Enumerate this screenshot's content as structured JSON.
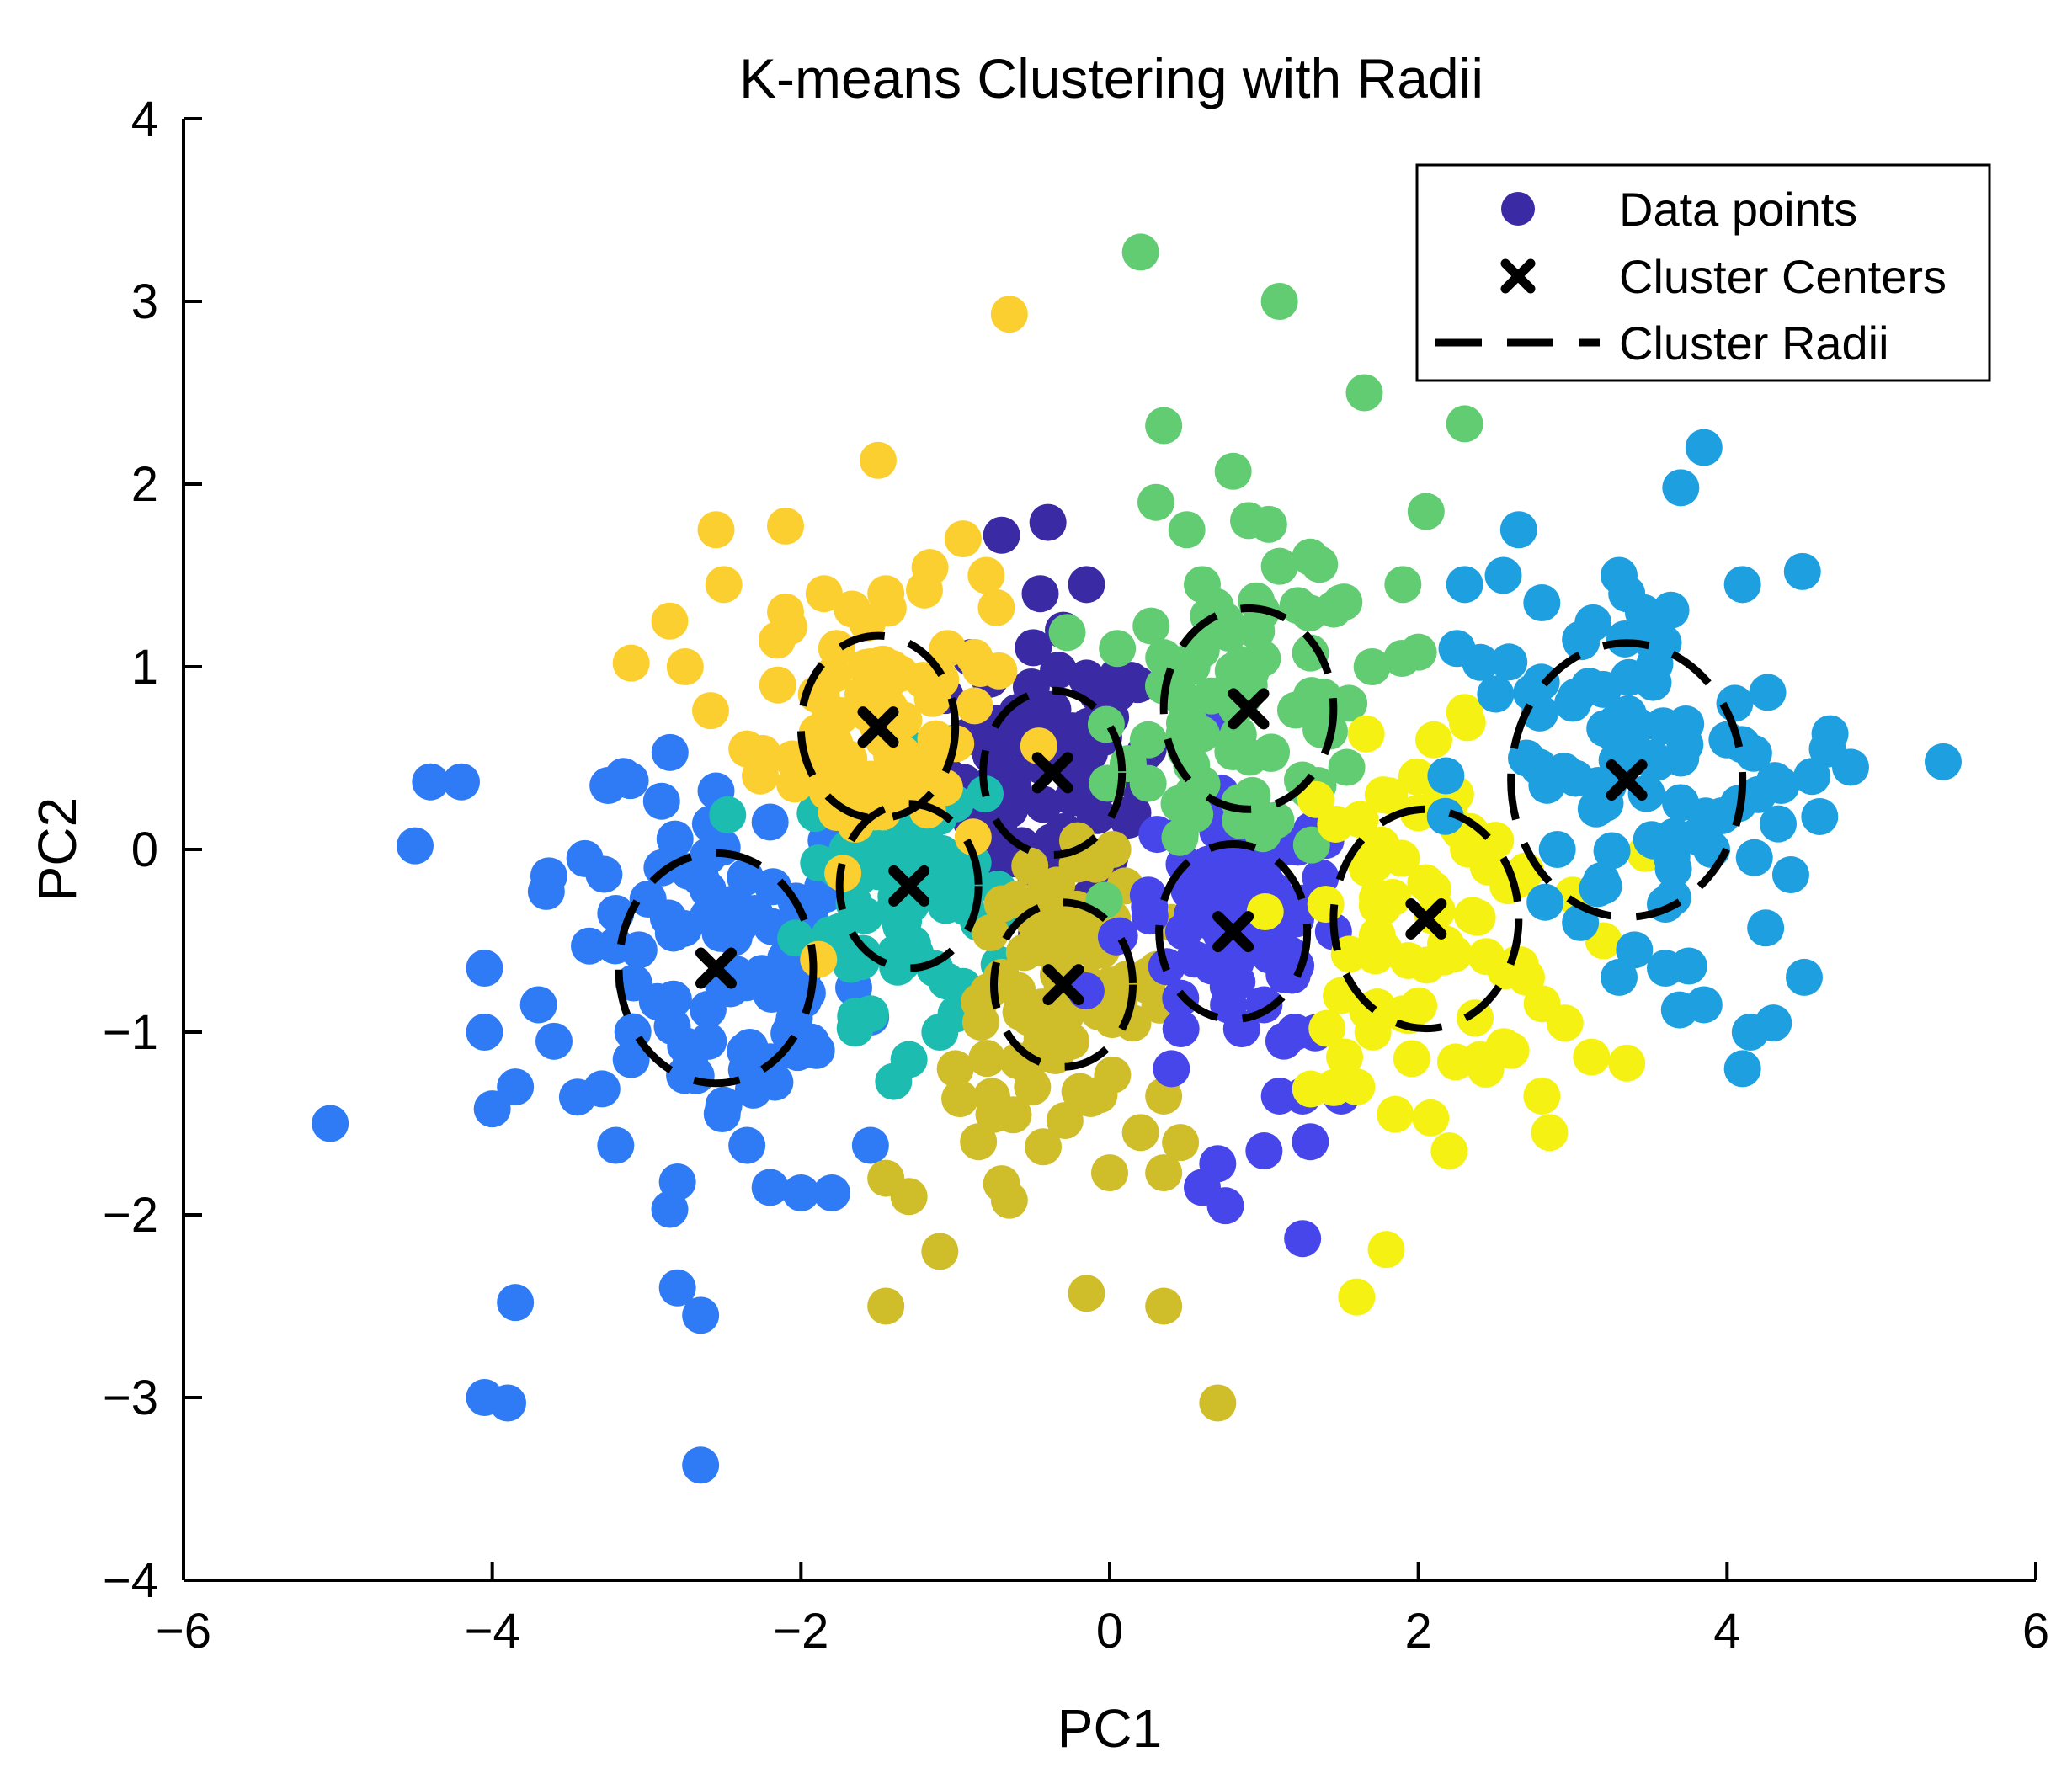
{
  "chart_data": {
    "type": "scatter",
    "title": "K-means Clustering with Radii",
    "xlabel": "PC1",
    "ylabel": "PC2",
    "xlim": [
      -6,
      6
    ],
    "ylim": [
      -4,
      4
    ],
    "xticks": [
      -6,
      -4,
      -2,
      0,
      2,
      4,
      6
    ],
    "xtick_labels": [
      "−6",
      "−4",
      "−2",
      "0",
      "2",
      "4",
      "6"
    ],
    "yticks": [
      -4,
      -3,
      -2,
      -1,
      0,
      1,
      2,
      3,
      4
    ],
    "ytick_labels": [
      "−4",
      "−3",
      "−2",
      "−1",
      "0",
      "1",
      "2",
      "3",
      "4"
    ],
    "grid": false,
    "legend": {
      "position": "top-right",
      "entries": [
        "Data points",
        "Cluster Centers",
        "Cluster Radii"
      ]
    },
    "clusters": [
      {
        "color": "#3a2aa4",
        "center": [
          -0.37,
          0.42
        ],
        "radius": 0.45,
        "points": [
          [
            -0.7,
            1.72
          ],
          [
            -0.4,
            1.79
          ],
          [
            -0.45,
            1.4
          ],
          [
            -0.15,
            1.45
          ],
          [
            -0.9,
            1.05
          ],
          [
            -0.3,
            1.2
          ],
          [
            -0.6,
            0.75
          ],
          [
            0.05,
            0.95
          ],
          [
            -0.2,
            0.3
          ],
          [
            -0.75,
            0.2
          ],
          [
            0.25,
            0.55
          ],
          [
            -0.5,
            -0.05
          ],
          [
            0.0,
            -0.05
          ],
          [
            0.15,
            0.2
          ],
          [
            -0.35,
            0.65
          ]
        ]
      },
      {
        "color": "#2f7bf6",
        "center": [
          -2.55,
          -0.65
        ],
        "radius": 0.63,
        "points": [
          [
            -5.05,
            -1.5
          ],
          [
            -4.5,
            0.02
          ],
          [
            -4.4,
            0.37
          ],
          [
            -4.2,
            0.37
          ],
          [
            -4.05,
            -0.65
          ],
          [
            -4.05,
            -1.0
          ],
          [
            -4.0,
            -1.42
          ],
          [
            -3.85,
            -1.3
          ],
          [
            -3.85,
            -2.48
          ],
          [
            -4.05,
            -3.0
          ],
          [
            -3.9,
            -3.03
          ],
          [
            -3.7,
            -0.85
          ],
          [
            -3.6,
            -1.05
          ],
          [
            -3.65,
            -0.23
          ],
          [
            -3.4,
            -0.05
          ],
          [
            -3.25,
            0.35
          ],
          [
            -3.15,
            0.4
          ],
          [
            -3.2,
            -0.35
          ],
          [
            -3.05,
            -0.55
          ],
          [
            -3.1,
            -1.15
          ],
          [
            -3.2,
            -1.62
          ],
          [
            -2.85,
            -1.97
          ],
          [
            -2.8,
            -1.82
          ],
          [
            -2.8,
            -2.4
          ],
          [
            -2.65,
            -2.55
          ],
          [
            -2.65,
            -3.37
          ],
          [
            -2.5,
            -1.4
          ],
          [
            -2.35,
            -1.62
          ],
          [
            -2.2,
            -1.85
          ],
          [
            -2.0,
            -1.88
          ],
          [
            -1.8,
            -1.88
          ],
          [
            -1.55,
            -1.62
          ],
          [
            -2.55,
            0.32
          ],
          [
            -2.2,
            0.15
          ],
          [
            -2.6,
            -1.05
          ],
          [
            -2.9,
            -0.1
          ],
          [
            -1.9,
            -1.1
          ],
          [
            -2.3,
            -0.35
          ],
          [
            -2.1,
            -0.75
          ]
        ]
      },
      {
        "color": "#1cbdb0",
        "center": [
          -1.3,
          -0.2
        ],
        "radius": 0.45,
        "points": [
          [
            -1.7,
            0.0
          ],
          [
            -1.5,
            0.3
          ],
          [
            -1.0,
            0.25
          ],
          [
            -0.85,
            -0.4
          ],
          [
            -1.75,
            -0.45
          ],
          [
            -1.55,
            -0.9
          ],
          [
            -1.3,
            -1.15
          ],
          [
            -1.1,
            -1.0
          ],
          [
            -0.95,
            -0.75
          ],
          [
            -1.4,
            -1.27
          ],
          [
            -1.65,
            -0.15
          ]
        ]
      },
      {
        "color": "#fbcf30",
        "center": [
          -1.5,
          0.67
        ],
        "radius": 0.5,
        "points": [
          [
            -3.1,
            1.02
          ],
          [
            -2.85,
            1.25
          ],
          [
            -2.55,
            1.75
          ],
          [
            -2.5,
            1.45
          ],
          [
            -2.75,
            1.0
          ],
          [
            -2.35,
            0.55
          ],
          [
            -2.1,
            1.3
          ],
          [
            -1.85,
            1.4
          ],
          [
            -2.15,
            0.9
          ],
          [
            -1.5,
            2.13
          ],
          [
            -2.1,
            1.77
          ],
          [
            -1.45,
            1.4
          ],
          [
            -1.2,
            1.42
          ],
          [
            -0.95,
            1.7
          ],
          [
            -0.8,
            1.5
          ],
          [
            -1.05,
            1.1
          ],
          [
            -0.65,
            2.93
          ],
          [
            -1.8,
            0.35
          ],
          [
            -1.15,
            0.5
          ],
          [
            -1.55,
            1.0
          ],
          [
            -1.9,
            0.85
          ]
        ]
      },
      {
        "color": "#cfbd2a",
        "center": [
          -0.3,
          -0.74
        ],
        "radius": 0.45,
        "points": [
          [
            -1.45,
            -2.5
          ],
          [
            -0.15,
            -2.43
          ],
          [
            0.35,
            -2.5
          ],
          [
            0.7,
            -3.03
          ],
          [
            -1.45,
            -1.8
          ],
          [
            -1.3,
            -1.9
          ],
          [
            -1.1,
            -2.2
          ],
          [
            -0.7,
            -1.83
          ],
          [
            -0.65,
            -1.92
          ],
          [
            -0.85,
            -1.6
          ],
          [
            0.0,
            -1.77
          ],
          [
            0.35,
            -1.77
          ],
          [
            0.2,
            -1.55
          ],
          [
            0.35,
            -1.35
          ],
          [
            -0.5,
            -1.3
          ],
          [
            -1.0,
            -1.2
          ],
          [
            -0.7,
            -0.7
          ],
          [
            -0.45,
            -0.3
          ],
          [
            0.1,
            -0.2
          ],
          [
            0.4,
            -0.4
          ],
          [
            -0.25,
            -1.05
          ],
          [
            0.15,
            -0.95
          ],
          [
            -0.75,
            -1.45
          ]
        ]
      },
      {
        "color": "#4646ea",
        "center": [
          0.8,
          -0.45
        ],
        "radius": 0.48,
        "points": [
          [
            0.6,
            -1.85
          ],
          [
            0.7,
            -1.72
          ],
          [
            0.75,
            -1.95
          ],
          [
            1.1,
            -1.35
          ],
          [
            1.25,
            -1.35
          ],
          [
            1.3,
            -1.6
          ],
          [
            1.25,
            -2.13
          ],
          [
            1.0,
            -1.65
          ],
          [
            1.5,
            -1.35
          ],
          [
            1.45,
            -0.45
          ],
          [
            1.4,
            0.05
          ],
          [
            1.2,
            -1.0
          ],
          [
            0.25,
            -0.25
          ],
          [
            0.4,
            -1.2
          ],
          [
            0.7,
            0.1
          ],
          [
            1.0,
            -0.85
          ],
          [
            0.55,
            -0.6
          ]
        ]
      },
      {
        "color": "#62cc72",
        "center": [
          0.9,
          0.77
        ],
        "radius": 0.55,
        "points": [
          [
            0.2,
            3.27
          ],
          [
            1.1,
            3.0
          ],
          [
            1.65,
            2.5
          ],
          [
            2.3,
            2.33
          ],
          [
            0.35,
            2.32
          ],
          [
            0.8,
            2.07
          ],
          [
            0.3,
            1.9
          ],
          [
            2.05,
            1.85
          ],
          [
            0.5,
            1.75
          ],
          [
            1.3,
            1.6
          ],
          [
            0.9,
            1.8
          ],
          [
            0.6,
            1.45
          ],
          [
            1.1,
            1.55
          ],
          [
            1.9,
            1.45
          ],
          [
            1.5,
            1.35
          ],
          [
            2.0,
            1.08
          ],
          [
            0.05,
            1.1
          ],
          [
            0.35,
            1.05
          ],
          [
            0.75,
            1.25
          ],
          [
            1.35,
            0.35
          ],
          [
            1.55,
            0.8
          ],
          [
            0.9,
            0.2
          ],
          [
            0.25,
            0.6
          ],
          [
            1.7,
            1.0
          ],
          [
            0.45,
            0.25
          ]
        ]
      },
      {
        "color": "#f5f213",
        "center": [
          2.05,
          -0.38
        ],
        "radius": 0.6,
        "points": [
          [
            1.6,
            -2.45
          ],
          [
            2.2,
            -1.65
          ],
          [
            2.85,
            -1.55
          ],
          [
            3.35,
            -1.17
          ],
          [
            2.8,
            -1.35
          ],
          [
            2.6,
            -1.1
          ],
          [
            2.95,
            -0.95
          ],
          [
            3.2,
            -0.5
          ],
          [
            1.85,
            -1.45
          ],
          [
            1.6,
            -1.3
          ],
          [
            1.7,
            0.0
          ],
          [
            2.1,
            0.6
          ],
          [
            2.3,
            0.75
          ],
          [
            2.5,
            0.05
          ],
          [
            2.7,
            -0.7
          ],
          [
            1.9,
            -0.9
          ],
          [
            1.5,
            -0.8
          ],
          [
            1.4,
            -0.3
          ],
          [
            2.0,
            0.2
          ],
          [
            2.4,
            -1.15
          ],
          [
            3.0,
            -0.25
          ]
        ]
      },
      {
        "color": "#1e9fe0",
        "center": [
          3.35,
          0.38
        ],
        "radius": 0.75,
        "points": [
          [
            5.4,
            0.48
          ],
          [
            4.8,
            0.45
          ],
          [
            4.65,
            0.55
          ],
          [
            4.55,
            0.4
          ],
          [
            4.6,
            0.18
          ],
          [
            4.35,
            0.35
          ],
          [
            4.25,
            -0.43
          ],
          [
            4.5,
            -0.7
          ],
          [
            4.3,
            -0.95
          ],
          [
            4.15,
            -1.0
          ],
          [
            4.1,
            -1.2
          ],
          [
            3.85,
            -0.85
          ],
          [
            3.85,
            2.2
          ],
          [
            3.7,
            1.98
          ],
          [
            4.1,
            1.45
          ],
          [
            4.05,
            0.8
          ],
          [
            2.65,
            1.75
          ],
          [
            2.55,
            1.5
          ],
          [
            2.3,
            1.45
          ],
          [
            2.8,
            1.35
          ],
          [
            3.3,
            1.5
          ],
          [
            3.35,
            1.4
          ],
          [
            3.5,
            1.15
          ],
          [
            3.05,
            1.15
          ],
          [
            2.25,
            1.1
          ],
          [
            2.5,
            0.85
          ],
          [
            3.6,
            -0.3
          ],
          [
            3.4,
            -0.55
          ],
          [
            3.6,
            -0.65
          ],
          [
            3.05,
            -0.4
          ],
          [
            3.3,
            -0.7
          ],
          [
            3.9,
            0.0
          ],
          [
            4.2,
            0.3
          ],
          [
            2.7,
            0.5
          ],
          [
            3.0,
            0.8
          ],
          [
            3.2,
            -0.2
          ],
          [
            3.7,
            0.5
          ],
          [
            4.0,
            0.6
          ],
          [
            2.9,
            0.0
          ]
        ]
      }
    ]
  }
}
